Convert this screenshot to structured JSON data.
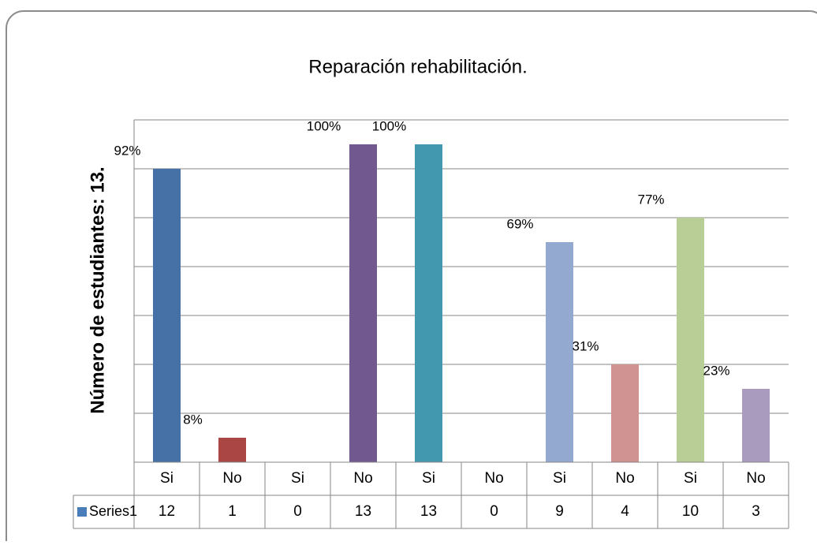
{
  "chart_data": {
    "type": "bar",
    "title": "Reparación rehabilitación.",
    "y_axis_label": "Número de estudiantes: 13.",
    "categories": [
      "Si",
      "No",
      "Si",
      "No",
      "Si",
      "No",
      "Si",
      "No",
      "Si",
      "No"
    ],
    "series": [
      {
        "name": "Series1",
        "color": "#4a7ebb",
        "values": [
          12,
          1,
          0,
          13,
          13,
          0,
          9,
          4,
          10,
          3
        ],
        "point_colors": [
          "#4571a7",
          "#aa4643",
          "#89a54e",
          "#71588f",
          "#4198af",
          "#db843d",
          "#93a9cf",
          "#d09392",
          "#b9cd96",
          "#a99bbd"
        ]
      }
    ],
    "percent_labels": [
      "92%",
      "8%",
      null,
      "100%",
      "100%",
      null,
      "69%",
      "31%",
      "77%",
      "23%"
    ],
    "ylim": [
      0,
      14
    ],
    "yticks": [
      0,
      2,
      4,
      6,
      8,
      10,
      12,
      14
    ],
    "grid": true,
    "data_table": true
  }
}
